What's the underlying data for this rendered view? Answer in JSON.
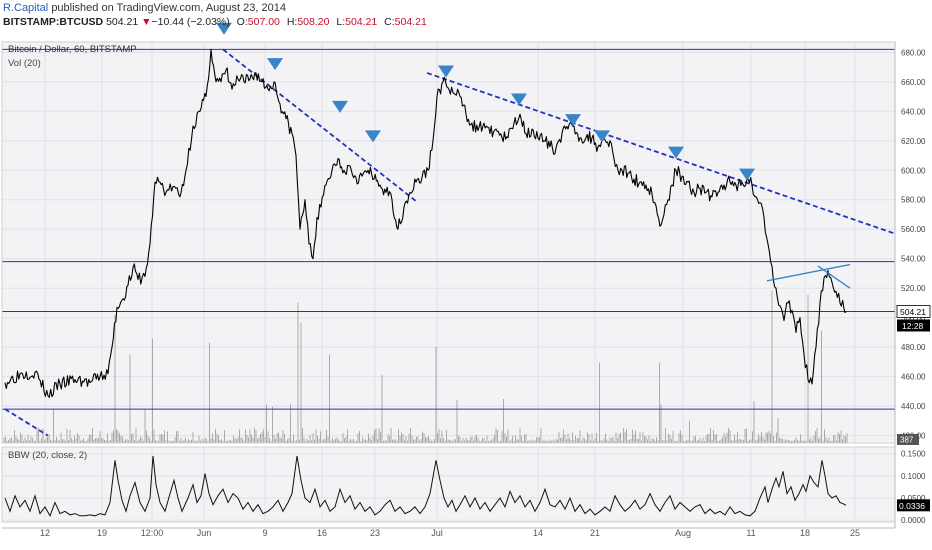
{
  "header": {
    "author": "R.Capital",
    "published_text": "published on TradingView.com, August 23, 2014",
    "symbol": "BITSTAMP:BTCUSD",
    "last": "504.21",
    "change_arrow": "▼",
    "change": "−10.44 (−2.03%)",
    "open_label": "O:",
    "open": "507.00",
    "high_label": "H:",
    "high": "508.20",
    "low_label": "L:",
    "low": "504.21",
    "close_label": "C:",
    "close": "504.21"
  },
  "colors": {
    "bg": "#f3f3f5",
    "price": "#000000",
    "hline": "#2233bb",
    "trend_dash": "#2233bb",
    "marker": "#3a84c9",
    "wedge": "#3a84c9",
    "volume": "#8a8a8a",
    "grid": "#e2e2e8",
    "down": "#c8102e"
  },
  "chart_data": [
    {
      "type": "line",
      "title": "Bitcoin / Dollar, 60, BITSTAMP",
      "volume_label": "Vol (20)",
      "x_tick_labels": [
        "12",
        "19",
        "12:00",
        "Jun",
        "9",
        "16",
        "23",
        "Jul",
        "14",
        "21",
        "Aug",
        "11",
        "18",
        "25"
      ],
      "y_tick_labels": [
        "420.00",
        "440.00",
        "460.00",
        "480.00",
        "500.00",
        "520.00",
        "540.00",
        "560.00",
        "580.00",
        "600.00",
        "620.00",
        "640.00",
        "660.00",
        "680.00"
      ],
      "ylim": [
        415,
        687
      ],
      "last_price": "504.21",
      "countdown": "12:28",
      "volume_last": "387",
      "horizontal_levels": [
        682,
        538,
        504.21,
        438
      ],
      "price_path_points": [
        [
          5,
          456
        ],
        [
          20,
          462
        ],
        [
          35,
          463
        ],
        [
          48,
          447
        ],
        [
          60,
          455
        ],
        [
          75,
          458
        ],
        [
          90,
          456
        ],
        [
          100,
          460
        ],
        [
          108,
          462
        ],
        [
          112,
          480
        ],
        [
          117,
          507
        ],
        [
          122,
          512
        ],
        [
          128,
          522
        ],
        [
          133,
          534
        ],
        [
          138,
          526
        ],
        [
          145,
          528
        ],
        [
          150,
          550
        ],
        [
          155,
          592
        ],
        [
          160,
          592
        ],
        [
          166,
          585
        ],
        [
          173,
          589
        ],
        [
          180,
          582
        ],
        [
          186,
          600
        ],
        [
          193,
          630
        ],
        [
          200,
          640
        ],
        [
          206,
          650
        ],
        [
          211,
          682
        ],
        [
          216,
          660
        ],
        [
          221,
          660
        ],
        [
          226,
          668
        ],
        [
          232,
          655
        ],
        [
          238,
          662
        ],
        [
          244,
          660
        ],
        [
          250,
          662
        ],
        [
          256,
          666
        ],
        [
          262,
          660
        ],
        [
          268,
          655
        ],
        [
          274,
          660
        ],
        [
          280,
          645
        ],
        [
          286,
          635
        ],
        [
          292,
          625
        ],
        [
          296,
          610
        ],
        [
          300,
          560
        ],
        [
          305,
          580
        ],
        [
          309,
          550
        ],
        [
          313,
          540
        ],
        [
          317,
          568
        ],
        [
          321,
          575
        ],
        [
          326,
          590
        ],
        [
          332,
          600
        ],
        [
          338,
          608
        ],
        [
          344,
          600
        ],
        [
          350,
          603
        ],
        [
          356,
          595
        ],
        [
          362,
          596
        ],
        [
          368,
          600
        ],
        [
          374,
          594
        ],
        [
          380,
          590
        ],
        [
          386,
          585
        ],
        [
          392,
          580
        ],
        [
          398,
          560
        ],
        [
          404,
          575
        ],
        [
          410,
          585
        ],
        [
          416,
          592
        ],
        [
          422,
          595
        ],
        [
          428,
          600
        ],
        [
          433,
          620
        ],
        [
          437,
          650
        ],
        [
          443,
          660
        ],
        [
          448,
          656
        ],
        [
          454,
          652
        ],
        [
          460,
          650
        ],
        [
          466,
          638
        ],
        [
          472,
          632
        ],
        [
          478,
          627
        ],
        [
          484,
          632
        ],
        [
          490,
          625
        ],
        [
          496,
          628
        ],
        [
          502,
          622
        ],
        [
          508,
          622
        ],
        [
          514,
          632
        ],
        [
          520,
          638
        ],
        [
          526,
          625
        ],
        [
          532,
          628
        ],
        [
          538,
          622
        ],
        [
          544,
          620
        ],
        [
          550,
          616
        ],
        [
          556,
          615
        ],
        [
          562,
          625
        ],
        [
          568,
          628
        ],
        [
          574,
          630
        ],
        [
          580,
          622
        ],
        [
          586,
          622
        ],
        [
          592,
          622
        ],
        [
          598,
          616
        ],
        [
          604,
          622
        ],
        [
          610,
          620
        ],
        [
          614,
          608
        ],
        [
          618,
          600
        ],
        [
          622,
          600
        ],
        [
          628,
          598
        ],
        [
          634,
          594
        ],
        [
          640,
          592
        ],
        [
          646,
          590
        ],
        [
          652,
          584
        ],
        [
          656,
          576
        ],
        [
          660,
          562
        ],
        [
          664,
          570
        ],
        [
          668,
          580
        ],
        [
          672,
          590
        ],
        [
          676,
          600
        ],
        [
          682,
          596
        ],
        [
          688,
          592
        ],
        [
          694,
          585
        ],
        [
          700,
          588
        ],
        [
          706,
          585
        ],
        [
          712,
          582
        ],
        [
          718,
          585
        ],
        [
          724,
          590
        ],
        [
          730,
          592
        ],
        [
          736,
          590
        ],
        [
          742,
          592
        ],
        [
          748,
          594
        ],
        [
          752,
          590
        ],
        [
          756,
          582
        ],
        [
          760,
          578
        ],
        [
          764,
          568
        ],
        [
          768,
          550
        ],
        [
          772,
          535
        ],
        [
          776,
          520
        ],
        [
          780,
          508
        ],
        [
          784,
          498
        ],
        [
          788,
          510
        ],
        [
          792,
          505
        ],
        [
          796,
          490
        ],
        [
          800,
          500
        ],
        [
          804,
          475
        ],
        [
          808,
          458
        ],
        [
          812,
          455
        ],
        [
          816,
          480
        ],
        [
          820,
          510
        ],
        [
          824,
          527
        ],
        [
          828,
          532
        ],
        [
          832,
          524
        ],
        [
          836,
          518
        ],
        [
          840,
          510
        ],
        [
          844,
          506
        ],
        [
          846,
          504
        ]
      ],
      "trend_lines": [
        {
          "from": [
            223,
            682
          ],
          "to": [
            418,
            578
          ]
        },
        {
          "from": [
            427,
            666
          ],
          "to": [
            895,
            557
          ]
        },
        {
          "from": [
            5,
            438
          ],
          "to": [
            48,
            420
          ]
        }
      ],
      "wedge_lines": [
        {
          "from": [
            767,
            525
          ],
          "to": [
            850,
            536
          ]
        },
        {
          "from": [
            818,
            535
          ],
          "to": [
            850,
            520
          ]
        }
      ],
      "marker_positions": [
        [
          224,
          696
        ],
        [
          275,
          672
        ],
        [
          340,
          643
        ],
        [
          373,
          623
        ],
        [
          446,
          667
        ],
        [
          519,
          648
        ],
        [
          573,
          634
        ],
        [
          602,
          623
        ],
        [
          676,
          612
        ],
        [
          747,
          597
        ]
      ]
    },
    {
      "type": "line",
      "title": "BBW (20, close, 2)",
      "y_tick_labels": [
        "0.0000",
        "0.0500",
        "0.1000",
        "0.1500"
      ],
      "ylim": [
        -0.004,
        0.165
      ],
      "last_value": "0.0336",
      "bbw_points": [
        [
          5,
          0.05
        ],
        [
          10,
          0.02
        ],
        [
          15,
          0.055
        ],
        [
          20,
          0.03
        ],
        [
          25,
          0.045
        ],
        [
          30,
          0.02
        ],
        [
          35,
          0.055
        ],
        [
          40,
          0.015
        ],
        [
          45,
          0.03
        ],
        [
          50,
          0.01
        ],
        [
          55,
          0.04
        ],
        [
          60,
          0.015
        ],
        [
          65,
          0.02
        ],
        [
          70,
          0.012
        ],
        [
          75,
          0.015
        ],
        [
          80,
          0.01
        ],
        [
          85,
          0.01
        ],
        [
          90,
          0.012
        ],
        [
          95,
          0.01
        ],
        [
          100,
          0.015
        ],
        [
          105,
          0.012
        ],
        [
          110,
          0.04
        ],
        [
          115,
          0.135
        ],
        [
          118,
          0.09
        ],
        [
          122,
          0.045
        ],
        [
          126,
          0.02
        ],
        [
          130,
          0.055
        ],
        [
          135,
          0.085
        ],
        [
          140,
          0.04
        ],
        [
          145,
          0.02
        ],
        [
          150,
          0.05
        ],
        [
          153,
          0.145
        ],
        [
          156,
          0.08
        ],
        [
          160,
          0.04
        ],
        [
          165,
          0.02
        ],
        [
          170,
          0.06
        ],
        [
          174,
          0.09
        ],
        [
          178,
          0.05
        ],
        [
          182,
          0.02
        ],
        [
          188,
          0.05
        ],
        [
          193,
          0.08
        ],
        [
          197,
          0.04
        ],
        [
          201,
          0.055
        ],
        [
          205,
          0.105
        ],
        [
          209,
          0.06
        ],
        [
          213,
          0.035
        ],
        [
          218,
          0.055
        ],
        [
          223,
          0.07
        ],
        [
          228,
          0.04
        ],
        [
          233,
          0.06
        ],
        [
          238,
          0.05
        ],
        [
          243,
          0.025
        ],
        [
          248,
          0.04
        ],
        [
          253,
          0.02
        ],
        [
          258,
          0.035
        ],
        [
          263,
          0.015
        ],
        [
          268,
          0.02
        ],
        [
          273,
          0.03
        ],
        [
          278,
          0.045
        ],
        [
          283,
          0.02
        ],
        [
          288,
          0.04
        ],
        [
          292,
          0.06
        ],
        [
          297,
          0.145
        ],
        [
          301,
          0.09
        ],
        [
          305,
          0.05
        ],
        [
          310,
          0.04
        ],
        [
          315,
          0.07
        ],
        [
          320,
          0.03
        ],
        [
          325,
          0.045
        ],
        [
          330,
          0.02
        ],
        [
          335,
          0.03
        ],
        [
          340,
          0.07
        ],
        [
          345,
          0.04
        ],
        [
          350,
          0.055
        ],
        [
          355,
          0.025
        ],
        [
          360,
          0.04
        ],
        [
          365,
          0.02
        ],
        [
          370,
          0.03
        ],
        [
          375,
          0.012
        ],
        [
          380,
          0.02
        ],
        [
          385,
          0.035
        ],
        [
          390,
          0.045
        ],
        [
          395,
          0.02
        ],
        [
          400,
          0.03
        ],
        [
          405,
          0.015
        ],
        [
          410,
          0.02
        ],
        [
          415,
          0.03
        ],
        [
          420,
          0.015
        ],
        [
          425,
          0.03
        ],
        [
          430,
          0.06
        ],
        [
          436,
          0.135
        ],
        [
          440,
          0.09
        ],
        [
          444,
          0.05
        ],
        [
          448,
          0.03
        ],
        [
          452,
          0.045
        ],
        [
          456,
          0.02
        ],
        [
          460,
          0.035
        ],
        [
          465,
          0.055
        ],
        [
          470,
          0.03
        ],
        [
          475,
          0.05
        ],
        [
          480,
          0.025
        ],
        [
          485,
          0.04
        ],
        [
          490,
          0.02
        ],
        [
          495,
          0.035
        ],
        [
          500,
          0.05
        ],
        [
          505,
          0.03
        ],
        [
          510,
          0.065
        ],
        [
          515,
          0.04
        ],
        [
          520,
          0.055
        ],
        [
          525,
          0.03
        ],
        [
          530,
          0.045
        ],
        [
          535,
          0.02
        ],
        [
          540,
          0.04
        ],
        [
          545,
          0.07
        ],
        [
          550,
          0.035
        ],
        [
          555,
          0.03
        ],
        [
          560,
          0.045
        ],
        [
          565,
          0.025
        ],
        [
          570,
          0.05
        ],
        [
          575,
          0.02
        ],
        [
          580,
          0.035
        ],
        [
          585,
          0.015
        ],
        [
          590,
          0.025
        ],
        [
          595,
          0.012
        ],
        [
          600,
          0.02
        ],
        [
          605,
          0.03
        ],
        [
          610,
          0.02
        ],
        [
          615,
          0.055
        ],
        [
          620,
          0.035
        ],
        [
          625,
          0.02
        ],
        [
          630,
          0.03
        ],
        [
          635,
          0.045
        ],
        [
          640,
          0.025
        ],
        [
          645,
          0.035
        ],
        [
          650,
          0.06
        ],
        [
          655,
          0.035
        ],
        [
          660,
          0.02
        ],
        [
          665,
          0.04
        ],
        [
          670,
          0.055
        ],
        [
          675,
          0.025
        ],
        [
          680,
          0.04
        ],
        [
          685,
          0.03
        ],
        [
          690,
          0.02
        ],
        [
          695,
          0.03
        ],
        [
          700,
          0.035
        ],
        [
          705,
          0.015
        ],
        [
          710,
          0.025
        ],
        [
          715,
          0.015
        ],
        [
          720,
          0.02
        ],
        [
          725,
          0.012
        ],
        [
          730,
          0.03
        ],
        [
          735,
          0.015
        ],
        [
          740,
          0.02
        ],
        [
          745,
          0.012
        ],
        [
          750,
          0.01
        ],
        [
          755,
          0.02
        ],
        [
          760,
          0.05
        ],
        [
          765,
          0.075
        ],
        [
          768,
          0.04
        ],
        [
          772,
          0.07
        ],
        [
          776,
          0.095
        ],
        [
          779,
          0.075
        ],
        [
          783,
          0.11
        ],
        [
          787,
          0.06
        ],
        [
          791,
          0.075
        ],
        [
          795,
          0.045
        ],
        [
          799,
          0.06
        ],
        [
          803,
          0.08
        ],
        [
          806,
          0.065
        ],
        [
          810,
          0.1
        ],
        [
          814,
          0.085
        ],
        [
          818,
          0.075
        ],
        [
          822,
          0.135
        ],
        [
          825,
          0.1
        ],
        [
          828,
          0.06
        ],
        [
          832,
          0.05
        ],
        [
          836,
          0.055
        ],
        [
          840,
          0.04
        ],
        [
          844,
          0.036
        ],
        [
          846,
          0.0336
        ]
      ]
    }
  ]
}
